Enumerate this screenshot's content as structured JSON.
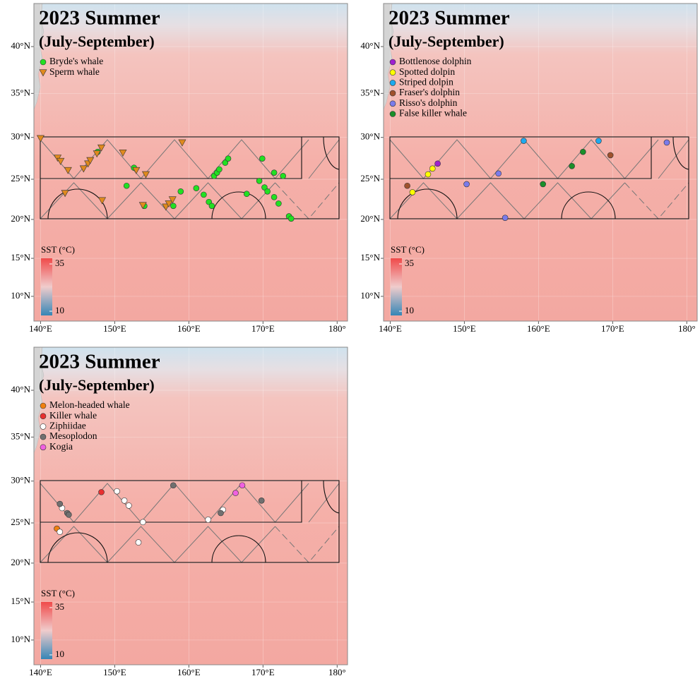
{
  "map": {
    "lonlim": [
      139.1,
      181.4
    ],
    "latlim": [
      6.7,
      44.3
    ],
    "lon_ticks": [
      {
        "value": 140,
        "label": "140°E"
      },
      {
        "value": 150,
        "label": "150°E"
      },
      {
        "value": 160,
        "label": "160°E"
      },
      {
        "value": 170,
        "label": "170°E"
      },
      {
        "value": 180,
        "label": "180°"
      }
    ],
    "lat_ticks": [
      {
        "value": 10,
        "label": "10°N"
      },
      {
        "value": 15,
        "label": "15°N"
      },
      {
        "value": 20,
        "label": "20°N"
      },
      {
        "value": 25,
        "label": "25°N"
      },
      {
        "value": 30,
        "label": "30°N"
      },
      {
        "value": 35,
        "label": "35°N"
      },
      {
        "value": 40,
        "label": "40°N"
      }
    ]
  },
  "panels": [
    {
      "title": "2023 Summer",
      "subtitle": "(July-September)",
      "colorbar": {
        "label": "SST (°C)",
        "max": 35,
        "min": 10
      },
      "species": [
        {
          "name": "Bryde's whale",
          "color": "#22e022",
          "marker": "circle",
          "lon": [
            147.7,
            151.6,
            152.6,
            154.0,
            157.9,
            158.9,
            161.0,
            162.0,
            162.7,
            163.1,
            163.4,
            163.8,
            164.1,
            164.9,
            165.3,
            167.8,
            169.5,
            169.9,
            170.2,
            170.6,
            171.5,
            171.5,
            172.1,
            172.7,
            173.5,
            173.8
          ],
          "lat": [
            28.3,
            24.2,
            26.4,
            21.7,
            21.7,
            23.5,
            23.9,
            23.1,
            22.2,
            21.7,
            25.4,
            25.8,
            26.2,
            27.0,
            27.5,
            23.2,
            24.8,
            27.5,
            24.0,
            23.5,
            25.8,
            22.8,
            22.0,
            25.4,
            20.4,
            20.1
          ]
        },
        {
          "name": "Sperm whale",
          "color": "#e08a1e",
          "marker": "triangle",
          "lon": [
            140.0,
            142.3,
            142.7,
            143.7,
            143.3,
            145.8,
            146.4,
            146.7,
            147.6,
            148.2,
            148.3,
            151.1,
            152.9,
            153.8,
            154.2,
            156.9,
            157.3,
            157.8,
            159.1
          ],
          "lat": [
            29.9,
            27.6,
            27.2,
            26.1,
            23.3,
            26.3,
            26.9,
            27.3,
            28.1,
            28.8,
            22.4,
            28.2,
            26.1,
            21.8,
            25.6,
            21.6,
            22.0,
            22.5,
            29.4
          ]
        }
      ]
    },
    {
      "title": "2023 Summer",
      "subtitle": "(July-September)",
      "colorbar": {
        "label": "SST (°C)",
        "max": 35,
        "min": 10
      },
      "species": [
        {
          "name": "Bottlenose dolphin",
          "color": "#a020d0",
          "marker": "circle",
          "lon": [
            146.4
          ],
          "lat": [
            26.9
          ]
        },
        {
          "name": "Spotted dolpin",
          "color": "#ffff00",
          "marker": "circle",
          "lon": [
            143.0,
            145.1,
            145.7
          ],
          "lat": [
            23.4,
            25.6,
            26.3
          ]
        },
        {
          "name": "Striped dolpin",
          "color": "#1eaaee",
          "marker": "circle",
          "lon": [
            158.0,
            168.1
          ],
          "lat": [
            29.6,
            29.6
          ]
        },
        {
          "name": "Fraser's dolphin",
          "color": "#a0522d",
          "marker": "circle",
          "lon": [
            142.3,
            169.7
          ],
          "lat": [
            24.2,
            27.9
          ]
        },
        {
          "name": "Risso's dolphin",
          "color": "#7b7bea",
          "marker": "circle",
          "lon": [
            150.3,
            154.6,
            155.5,
            177.3
          ],
          "lat": [
            24.4,
            25.7,
            20.2,
            29.4
          ]
        },
        {
          "name": "False killer whale",
          "color": "#1a8f2a",
          "marker": "circle",
          "lon": [
            160.6,
            164.5,
            166.0
          ],
          "lat": [
            24.4,
            26.6,
            28.3
          ]
        }
      ]
    },
    {
      "title": "2023 Summer",
      "subtitle": "(July-September)",
      "colorbar": {
        "label": "SST (°C)",
        "max": 35,
        "min": 10
      },
      "species": [
        {
          "name": "Melon-headed whale",
          "color": "#f08010",
          "marker": "circle",
          "lon": [
            142.2
          ],
          "lat": [
            24.3
          ]
        },
        {
          "name": "Killer whale",
          "color": "#e83030",
          "marker": "circle",
          "lon": [
            148.2
          ],
          "lat": [
            28.7
          ]
        },
        {
          "name": "Ziphiidae",
          "color": "#ffffff",
          "marker": "circle",
          "lon": [
            142.9,
            142.6,
            150.3,
            151.3,
            151.9,
            153.8,
            153.2,
            162.6,
            164.6
          ],
          "lat": [
            26.8,
            23.9,
            28.8,
            27.7,
            27.1,
            25.1,
            22.6,
            25.4,
            26.6
          ]
        },
        {
          "name": "Mesoplodon",
          "color": "#707070",
          "marker": "circle",
          "lon": [
            142.6,
            143.6,
            143.8,
            157.9,
            164.3,
            169.8
          ],
          "lat": [
            27.3,
            26.2,
            26.0,
            29.5,
            26.2,
            27.7
          ]
        },
        {
          "name": "Kogia",
          "color": "#f060e0",
          "marker": "circle",
          "lon": [
            166.3,
            167.2
          ],
          "lat": [
            28.6,
            29.5
          ]
        }
      ]
    }
  ]
}
